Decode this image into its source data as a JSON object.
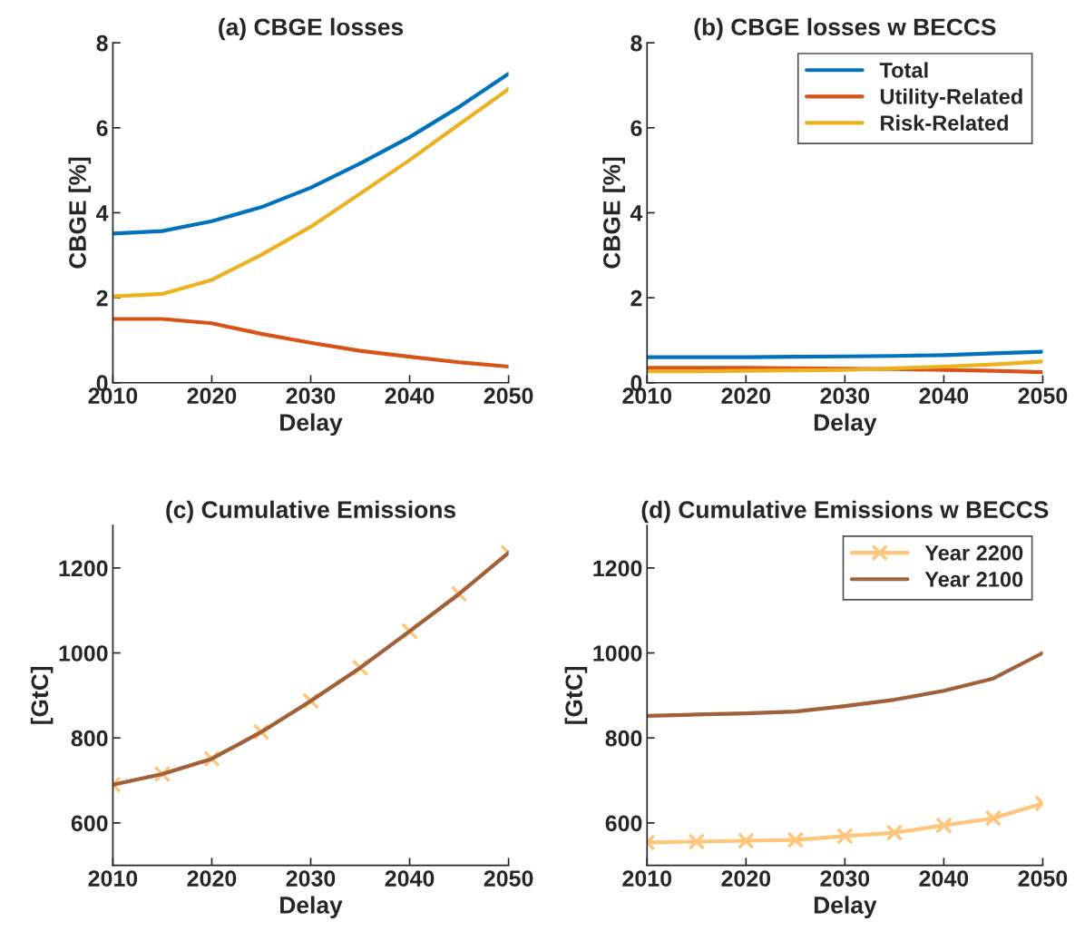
{
  "chart_data": [
    {
      "type": "line",
      "title": "(a) CBGE losses",
      "xlabel": "Delay",
      "ylabel": "CBGE [%]",
      "x": [
        2010,
        2015,
        2020,
        2025,
        2030,
        2035,
        2040,
        2045,
        2050
      ],
      "xlim": [
        2010,
        2050
      ],
      "xticks": [
        2010,
        2020,
        2030,
        2040,
        2050
      ],
      "ylim": [
        0,
        8
      ],
      "yticks": [
        0,
        2,
        4,
        6,
        8
      ],
      "grid": false,
      "legend": false,
      "series": [
        {
          "color": "#0072bd",
          "values": [
            3.51,
            3.57,
            3.8,
            4.13,
            4.59,
            5.16,
            5.78,
            6.49,
            7.27
          ]
        },
        {
          "color": "#d95319",
          "values": [
            1.5,
            1.5,
            1.4,
            1.15,
            0.94,
            0.75,
            0.61,
            0.48,
            0.38
          ]
        },
        {
          "color": "#edb120",
          "values": [
            2.03,
            2.09,
            2.42,
            3.01,
            3.67,
            4.45,
            5.24,
            6.08,
            6.91
          ]
        }
      ]
    },
    {
      "type": "line",
      "title": "(b) CBGE losses w BECCS",
      "xlabel": "Delay",
      "ylabel": "CBGE [%]",
      "x": [
        2010,
        2015,
        2020,
        2025,
        2030,
        2035,
        2040,
        2045,
        2050
      ],
      "xlim": [
        2010,
        2050
      ],
      "xticks": [
        2010,
        2020,
        2030,
        2040,
        2050
      ],
      "ylim": [
        0,
        8
      ],
      "yticks": [
        0,
        2,
        4,
        6,
        8
      ],
      "grid": false,
      "legend": "top right",
      "series": [
        {
          "name": "Total",
          "color": "#0072bd",
          "values": [
            0.6,
            0.6,
            0.6,
            0.61,
            0.62,
            0.63,
            0.65,
            0.69,
            0.73
          ]
        },
        {
          "name": "Utility-Related",
          "color": "#d95319",
          "values": [
            0.35,
            0.35,
            0.35,
            0.34,
            0.33,
            0.32,
            0.3,
            0.28,
            0.25
          ]
        },
        {
          "name": "Risk-Related",
          "color": "#edb120",
          "values": [
            0.27,
            0.27,
            0.28,
            0.29,
            0.3,
            0.34,
            0.38,
            0.43,
            0.5
          ]
        }
      ]
    },
    {
      "type": "line",
      "title": "(c) Cumulative Emissions",
      "xlabel": "Delay",
      "ylabel": "[GtC]",
      "x": [
        2010,
        2015,
        2020,
        2025,
        2030,
        2035,
        2040,
        2045,
        2050
      ],
      "xlim": [
        2010,
        2050
      ],
      "xticks": [
        2010,
        2020,
        2030,
        2040,
        2050
      ],
      "ylim": [
        500,
        1300
      ],
      "yticks": [
        600,
        800,
        1000,
        1200
      ],
      "grid": false,
      "legend": false,
      "series": [
        {
          "color": "#ffc57a",
          "marker": "cross",
          "values": [
            690,
            715,
            751,
            814,
            887,
            965,
            1051,
            1139,
            1236
          ]
        },
        {
          "color": "#a0603a",
          "marker": "none",
          "values": [
            690,
            715,
            751,
            814,
            887,
            965,
            1051,
            1139,
            1236
          ]
        }
      ]
    },
    {
      "type": "line",
      "title": "(d) Cumulative Emissions w BECCS",
      "xlabel": "Delay",
      "ylabel": "[GtC]",
      "x": [
        2010,
        2015,
        2020,
        2025,
        2030,
        2035,
        2040,
        2045,
        2050
      ],
      "xlim": [
        2010,
        2050
      ],
      "xticks": [
        2010,
        2020,
        2030,
        2040,
        2050
      ],
      "ylim": [
        500,
        1300
      ],
      "yticks": [
        600,
        800,
        1000,
        1200
      ],
      "grid": false,
      "legend": "top right",
      "series": [
        {
          "name": "Year 2200",
          "color": "#ffc57a",
          "marker": "cross",
          "values": [
            554,
            556,
            558,
            560,
            569,
            577,
            594,
            611,
            646
          ]
        },
        {
          "name": "Year 2100",
          "color": "#a0603a",
          "marker": "none",
          "values": [
            852,
            855,
            858,
            862,
            875,
            890,
            911,
            940,
            1000
          ]
        }
      ]
    }
  ]
}
